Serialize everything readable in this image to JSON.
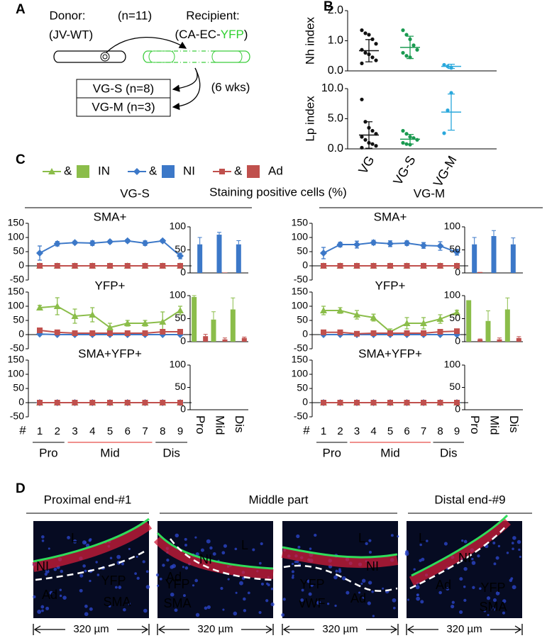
{
  "panel_labels": [
    "A",
    "B",
    "C",
    "D"
  ],
  "panel_a": {
    "donor": "Donor:",
    "donor_strain": "(JV-WT)",
    "n": "(n=11)",
    "recipient": "Recipient:",
    "recipient_strain_pre": "(CA-EC-",
    "recipient_strain_yfp": "YFP",
    "recipient_strain_post": ")",
    "groups": [
      "VG-S (n=8)",
      "VG-M (n=3)"
    ],
    "duration": "(6 wks)"
  },
  "panel_c": {
    "legend": {
      "joiner": "&",
      "items": [
        {
          "name": "IN",
          "color": "#8bbd4a",
          "marker": "triangle"
        },
        {
          "name": "NI",
          "color": "#3c78c8",
          "marker": "diamond"
        },
        {
          "name": "Ad",
          "color": "#c0504d",
          "marker": "square"
        }
      ]
    },
    "groups": [
      "VG-S",
      "VG-M"
    ],
    "title": "Staining positive cells (%)",
    "x_label": "#",
    "sections": [
      {
        "label": "Pro",
        "color": "#000000"
      },
      {
        "label": "Mid",
        "color": "#e0201b"
      },
      {
        "label": "Dis",
        "color": "#000000"
      }
    ]
  },
  "chart_data": [
    {
      "type": "dot",
      "ylabel": "Nh index",
      "categories": [
        null,
        null,
        null
      ],
      "ylim": [
        0,
        2
      ],
      "yticks": [
        {
          "value": 0,
          "label": "0.0"
        },
        {
          "value": 1,
          "label": "1.0"
        },
        {
          "value": 2,
          "label": "2.0"
        }
      ],
      "colors": [
        "#111111",
        "#1a9a50",
        "#2aa8dc"
      ],
      "points": [
        [
          1.35,
          1.25,
          1.2,
          1.05,
          0.9,
          0.7,
          0.6,
          0.55,
          0.45,
          0.35,
          0.25
        ],
        [
          1.35,
          1.2,
          1.05,
          0.85,
          0.7,
          0.6,
          0.5,
          0.45
        ],
        [
          0.2,
          0.15,
          0.1
        ]
      ],
      "means": [
        0.67,
        0.78,
        0.15
      ],
      "errors": [
        0.37,
        0.37,
        0.07
      ]
    },
    {
      "type": "dot",
      "ylabel": "Lp index",
      "categories": [
        "VG",
        "VG-S",
        "VG-M"
      ],
      "ylim": [
        0,
        10
      ],
      "yticks": [
        {
          "value": 0,
          "label": "0.0"
        },
        {
          "value": 5,
          "label": "5.0"
        },
        {
          "value": 10,
          "label": "10.0"
        }
      ],
      "colors": [
        "#111111",
        "#1a9a50",
        "#2aa8dc"
      ],
      "points": [
        [
          8.2,
          4.5,
          3.5,
          3,
          2.5,
          2,
          1.5,
          1,
          0.8,
          0.5,
          0.2
        ],
        [
          3,
          2.5,
          2,
          1.8,
          1.5,
          1,
          0.8,
          0.7
        ],
        [
          2.6,
          6.4,
          9.3
        ]
      ],
      "means": [
        2.3,
        1.6,
        6.1
      ],
      "errors": [
        2.2,
        0.8,
        3
      ]
    },
    {
      "type": "line",
      "title": "SMA+",
      "ylim": [
        -50,
        150
      ],
      "yticks": [
        -50,
        0,
        50,
        100,
        150
      ],
      "series": [
        {
          "color": "#8bbd4a",
          "marker": "triangle",
          "values": [
            0,
            0,
            0,
            0,
            0,
            0,
            0,
            0,
            0
          ],
          "errors": [
            0,
            0,
            0,
            0,
            0,
            0,
            0,
            0,
            0
          ]
        },
        {
          "color": "#3c78c8",
          "marker": "diamond",
          "values": [
            45,
            78,
            82,
            80,
            85,
            88,
            80,
            88,
            35
          ],
          "errors": [
            25,
            8,
            5,
            8,
            5,
            5,
            8,
            5,
            10
          ]
        },
        {
          "color": "#c0504d",
          "marker": "square",
          "values": [
            0,
            0,
            0,
            0,
            0,
            0,
            0,
            0,
            0
          ],
          "errors": [
            0,
            0,
            0,
            0,
            0,
            0,
            0,
            0,
            0
          ]
        }
      ]
    },
    {
      "type": "bars",
      "ylim": [
        0,
        100
      ],
      "yticks": [
        0,
        50,
        100
      ],
      "series": [
        {
          "color": "#8bbd4a",
          "values": [
            0,
            0,
            0
          ],
          "errors": [
            0,
            0,
            0
          ]
        },
        {
          "color": "#3c78c8",
          "values": [
            62,
            83,
            62
          ],
          "errors": [
            15,
            5,
            8
          ]
        },
        {
          "color": "#c0504d",
          "values": [
            0,
            1,
            0
          ],
          "errors": [
            0,
            0,
            0
          ]
        }
      ]
    },
    {
      "type": "line",
      "title": "YFP+",
      "ylim": [
        -50,
        150
      ],
      "yticks": [
        -50,
        0,
        50,
        100,
        150
      ],
      "series": [
        {
          "color": "#8bbd4a",
          "marker": "triangle",
          "values": [
            95,
            100,
            65,
            70,
            25,
            40,
            40,
            45,
            85
          ],
          "errors": [
            8,
            30,
            25,
            25,
            15,
            10,
            10,
            35,
            15
          ]
        },
        {
          "color": "#3c78c8",
          "marker": "diamond",
          "values": [
            2,
            0,
            0,
            0,
            0,
            0,
            0,
            0,
            0
          ],
          "errors": [
            0,
            0,
            0,
            0,
            0,
            0,
            0,
            0,
            0
          ]
        },
        {
          "color": "#c0504d",
          "marker": "square",
          "values": [
            15,
            8,
            5,
            5,
            5,
            5,
            5,
            10,
            10
          ],
          "errors": [
            4,
            3,
            2,
            2,
            2,
            2,
            2,
            3,
            3
          ]
        }
      ]
    },
    {
      "type": "bars",
      "ylim": [
        0,
        100
      ],
      "yticks": [
        0,
        50,
        100
      ],
      "series": [
        {
          "color": "#8bbd4a",
          "values": [
            97,
            48,
            70
          ],
          "errors": [
            3,
            17,
            25
          ]
        },
        {
          "color": "#3c78c8",
          "values": [
            0,
            0,
            0
          ],
          "errors": [
            0,
            0,
            0
          ]
        },
        {
          "color": "#c0504d",
          "values": [
            12,
            5,
            8
          ],
          "errors": [
            4,
            3,
            2
          ]
        }
      ]
    },
    {
      "type": "line",
      "title": "SMA+YFP+",
      "ylim": [
        -50,
        150
      ],
      "yticks": [
        -50,
        0,
        50,
        100,
        150
      ],
      "categories": [
        "1",
        "2",
        "3",
        "4",
        "5",
        "6",
        "7",
        "8",
        "9"
      ],
      "series": [
        {
          "color": "#8bbd4a",
          "marker": "triangle",
          "values": [
            0,
            0,
            0,
            0,
            0,
            0,
            0,
            0,
            0
          ],
          "errors": [
            0,
            0,
            0,
            0,
            0,
            0,
            0,
            0,
            0
          ]
        },
        {
          "color": "#3c78c8",
          "marker": "diamond",
          "values": [
            0,
            0,
            0,
            0,
            0,
            0,
            0,
            0,
            0
          ],
          "errors": [
            0,
            0,
            0,
            0,
            0,
            0,
            0,
            0,
            0
          ]
        },
        {
          "color": "#c0504d",
          "marker": "square",
          "values": [
            0,
            0,
            0,
            0,
            0,
            0,
            0,
            0,
            0
          ],
          "errors": [
            0,
            0,
            0,
            0,
            0,
            0,
            0,
            0,
            0
          ]
        }
      ]
    },
    {
      "type": "bars",
      "ylim": [
        0,
        100
      ],
      "yticks": [
        0,
        50,
        100
      ],
      "categories": [
        "Pro",
        "Mid",
        "Dis"
      ],
      "category_colors": [
        "#000000",
        "#e0201b",
        "#000000"
      ],
      "series": [
        {
          "color": "#8bbd4a",
          "values": [
            0,
            0,
            0
          ],
          "errors": [
            0,
            0,
            0
          ]
        },
        {
          "color": "#3c78c8",
          "values": [
            0,
            0,
            0
          ],
          "errors": [
            0,
            0,
            0
          ]
        },
        {
          "color": "#c0504d",
          "values": [
            0,
            0,
            0
          ],
          "errors": [
            0,
            0,
            0
          ]
        }
      ]
    },
    {
      "type": "line",
      "title": "SMA+",
      "ylim": [
        -50,
        150
      ],
      "yticks": [
        -50,
        0,
        50,
        100,
        150
      ],
      "series": [
        {
          "color": "#8bbd4a",
          "marker": "triangle",
          "values": [
            0,
            0,
            0,
            0,
            0,
            0,
            0,
            0,
            0
          ],
          "errors": [
            0,
            0,
            0,
            0,
            0,
            0,
            0,
            0,
            0
          ]
        },
        {
          "color": "#3c78c8",
          "marker": "diamond",
          "values": [
            45,
            75,
            75,
            82,
            78,
            80,
            72,
            70,
            48
          ],
          "errors": [
            20,
            8,
            12,
            8,
            10,
            8,
            10,
            15,
            10
          ]
        },
        {
          "color": "#c0504d",
          "marker": "square",
          "values": [
            0,
            0,
            0,
            0,
            0,
            0,
            0,
            0,
            0
          ],
          "errors": [
            0,
            0,
            0,
            0,
            0,
            0,
            0,
            0,
            0
          ]
        }
      ]
    },
    {
      "type": "bars",
      "ylim": [
        0,
        100
      ],
      "yticks": [
        0,
        50,
        100
      ],
      "series": [
        {
          "color": "#8bbd4a",
          "values": [
            0,
            0,
            0
          ],
          "errors": [
            0,
            0,
            0
          ]
        },
        {
          "color": "#3c78c8",
          "values": [
            62,
            80,
            62
          ],
          "errors": [
            15,
            12,
            14
          ]
        },
        {
          "color": "#c0504d",
          "values": [
            2,
            0,
            0
          ],
          "errors": [
            0,
            0,
            0
          ]
        }
      ]
    },
    {
      "type": "line",
      "title": "YFP+",
      "ylim": [
        -50,
        150
      ],
      "yticks": [
        -50,
        0,
        50,
        100,
        150
      ],
      "series": [
        {
          "color": "#8bbd4a",
          "marker": "triangle",
          "values": [
            85,
            85,
            70,
            60,
            10,
            40,
            40,
            55,
            78
          ],
          "errors": [
            15,
            10,
            15,
            12,
            10,
            20,
            20,
            15,
            8
          ]
        },
        {
          "color": "#3c78c8",
          "marker": "diamond",
          "values": [
            0,
            0,
            0,
            0,
            0,
            0,
            0,
            0,
            0
          ],
          "errors": [
            0,
            0,
            0,
            0,
            0,
            0,
            0,
            0,
            0
          ]
        },
        {
          "color": "#c0504d",
          "marker": "square",
          "values": [
            8,
            8,
            3,
            5,
            5,
            5,
            5,
            10,
            12
          ],
          "errors": [
            3,
            3,
            2,
            2,
            2,
            2,
            2,
            3,
            3
          ]
        }
      ]
    },
    {
      "type": "bars",
      "ylim": [
        0,
        100
      ],
      "yticks": [
        0,
        50,
        100
      ],
      "series": [
        {
          "color": "#8bbd4a",
          "values": [
            90,
            45,
            70
          ],
          "errors": [
            0,
            22,
            25
          ]
        },
        {
          "color": "#3c78c8",
          "values": [
            0,
            0,
            0
          ],
          "errors": [
            0,
            0,
            0
          ]
        },
        {
          "color": "#c0504d",
          "values": [
            5,
            5,
            8
          ],
          "errors": [
            1,
            3,
            3
          ]
        }
      ]
    },
    {
      "type": "line",
      "title": "SMA+YFP+",
      "ylim": [
        -50,
        150
      ],
      "yticks": [
        -50,
        0,
        50,
        100,
        150
      ],
      "categories": [
        "1",
        "2",
        "3",
        "4",
        "5",
        "6",
        "7",
        "8",
        "9"
      ],
      "series": [
        {
          "color": "#8bbd4a",
          "marker": "triangle",
          "values": [
            0,
            0,
            0,
            0,
            0,
            0,
            0,
            0,
            0
          ],
          "errors": [
            0,
            0,
            0,
            0,
            0,
            0,
            0,
            0,
            0
          ]
        },
        {
          "color": "#3c78c8",
          "marker": "diamond",
          "values": [
            0,
            0,
            0,
            0,
            0,
            0,
            0,
            0,
            0
          ],
          "errors": [
            0,
            0,
            0,
            0,
            0,
            0,
            0,
            0,
            0
          ]
        },
        {
          "color": "#c0504d",
          "marker": "square",
          "values": [
            0,
            0,
            0,
            0,
            0,
            0,
            0,
            0,
            0
          ],
          "errors": [
            0,
            0,
            0,
            0,
            0,
            0,
            0,
            0,
            0
          ]
        }
      ]
    },
    {
      "type": "bars",
      "ylim": [
        0,
        100
      ],
      "yticks": [
        0,
        50,
        100
      ],
      "categories": [
        "Pro",
        "Mid",
        "Dis"
      ],
      "category_colors": [
        "#000000",
        "#e0201b",
        "#000000"
      ],
      "series": [
        {
          "color": "#8bbd4a",
          "values": [
            0,
            0,
            0
          ],
          "errors": [
            0,
            0,
            0
          ]
        },
        {
          "color": "#3c78c8",
          "values": [
            0,
            0,
            0
          ],
          "errors": [
            0,
            0,
            0
          ]
        },
        {
          "color": "#c0504d",
          "values": [
            0,
            0,
            0
          ],
          "errors": [
            0,
            0,
            0
          ]
        }
      ]
    }
  ],
  "panel_d": {
    "titles": [
      "Proximal end-#1",
      "Middle part",
      "Distal end-#9"
    ],
    "scale": "320 µm",
    "images": [
      {
        "labels": [
          {
            "text": "L",
            "color": "#ffffff"
          },
          {
            "text": "NI",
            "color": "#ffffff"
          },
          {
            "text": "Ad",
            "color": "#ffffff"
          },
          {
            "text": "YFP",
            "color": "#3cdc3c"
          },
          {
            "text": "SMA",
            "color": "#ff2020"
          }
        ]
      },
      {
        "labels": [
          {
            "text": "L",
            "color": "#ffffff"
          },
          {
            "text": "NI",
            "color": "#ffffff"
          },
          {
            "text": "Ad",
            "color": "#ffffff"
          },
          {
            "text": "YFP",
            "color": "#3cdc3c"
          },
          {
            "text": "SMA",
            "color": "#ff2020"
          }
        ]
      },
      {
        "labels": [
          {
            "text": "L",
            "color": "#ffffff"
          },
          {
            "text": "NI",
            "color": "#ffffff"
          },
          {
            "text": "Ad",
            "color": "#ffffff"
          },
          {
            "text": "YFP",
            "color": "#3cdc3c"
          },
          {
            "text": "vWF",
            "color": "#ff2020"
          }
        ]
      },
      {
        "labels": [
          {
            "text": "L",
            "color": "#ffffff"
          },
          {
            "text": "NI",
            "color": "#ffffff"
          },
          {
            "text": "Ad",
            "color": "#ffffff"
          },
          {
            "text": "YFP",
            "color": "#3cdc3c"
          },
          {
            "text": "SMA",
            "color": "#ff2020"
          }
        ]
      }
    ]
  }
}
